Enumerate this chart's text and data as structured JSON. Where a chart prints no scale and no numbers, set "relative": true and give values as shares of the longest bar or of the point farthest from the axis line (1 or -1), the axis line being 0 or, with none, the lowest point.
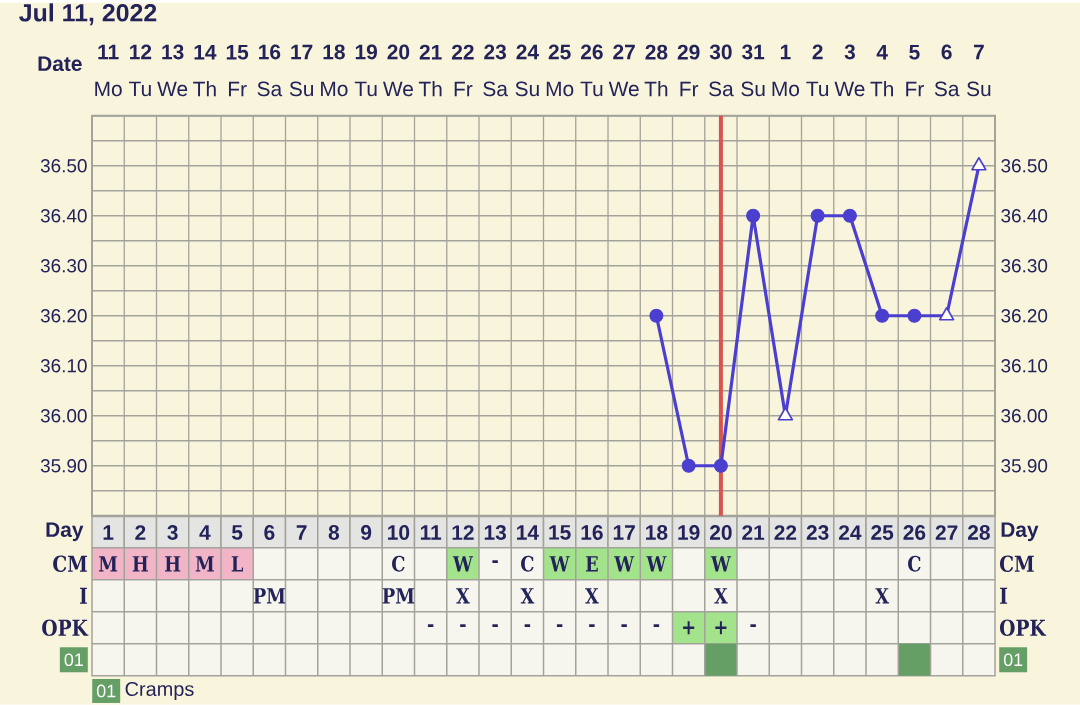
{
  "chart_data": [
    {
      "type": "line",
      "title": "Jul 11, 2022",
      "xlabel": "Day",
      "x2label": "Date",
      "xlim": [
        0.5,
        28.5
      ],
      "xticks": [
        {
          "value": 0.5,
          "label": null
        },
        1,
        {
          "value": 1.5,
          "label": null
        },
        2,
        {
          "value": 2.5,
          "label": null
        },
        3,
        {
          "value": 3.5,
          "label": null
        },
        4,
        {
          "value": 4.5,
          "label": null
        },
        5,
        {
          "value": 5.5,
          "label": null
        },
        6,
        {
          "value": 6.5,
          "label": null
        },
        7,
        {
          "value": 7.5,
          "label": null
        },
        8,
        {
          "value": 8.5,
          "label": null
        },
        9,
        {
          "value": 9.5,
          "label": null
        },
        10,
        {
          "value": 10.5,
          "label": null
        },
        11,
        {
          "value": 11.5,
          "label": null
        },
        12,
        {
          "value": 12.5,
          "label": null
        },
        13,
        {
          "value": 13.5,
          "label": null
        },
        14,
        {
          "value": 14.5,
          "label": null
        },
        15,
        {
          "value": 15.5,
          "label": null
        },
        16,
        {
          "value": 16.5,
          "label": null
        },
        17,
        {
          "value": 17.5,
          "label": null
        },
        18,
        {
          "value": 18.5,
          "label": null
        },
        19,
        {
          "value": 19.5,
          "label": null
        },
        20,
        {
          "value": 20.5,
          "label": null
        },
        21,
        {
          "value": 21.5,
          "label": null
        },
        22,
        {
          "value": 22.5,
          "label": null
        },
        23,
        {
          "value": 23.5,
          "label": null
        },
        24,
        {
          "value": 24.5,
          "label": null
        },
        25,
        {
          "value": 25.5,
          "label": null
        },
        26,
        {
          "value": 26.5,
          "label": null
        },
        27,
        {
          "value": 27.5,
          "label": null
        },
        28,
        {
          "value": 28.5,
          "label": null
        }
      ],
      "x2lim": [
        "2022-07-10T12:00",
        "2022-08-07T12:00"
      ],
      "x2ticks": [
        {
          "value": "2022-07-11",
          "label": "**11** Mo"
        },
        {
          "value": "2022-07-12",
          "label": "**12** Tu"
        },
        {
          "value": "2022-07-13",
          "label": "**13** We"
        },
        {
          "value": "2022-07-14",
          "label": "**14** Th"
        },
        {
          "value": "2022-07-15",
          "label": "**15** Fr"
        },
        {
          "value": "2022-07-16",
          "label": "**16** Sa"
        },
        {
          "value": "2022-07-17",
          "label": "**17** Su"
        },
        {
          "value": "2022-07-18",
          "label": "**18** Mo"
        },
        {
          "value": "2022-07-19",
          "label": "**19** Tu"
        },
        {
          "value": "2022-07-20",
          "label": "**20** We"
        },
        {
          "value": "2022-07-21",
          "label": "**21** Th"
        },
        {
          "value": "2022-07-22",
          "label": "**22** Fr"
        },
        {
          "value": "2022-07-23",
          "label": "**23** Sa"
        },
        {
          "value": "2022-07-24",
          "label": "**24** Su"
        },
        {
          "value": "2022-07-25",
          "label": "**25** Mo"
        },
        {
          "value": "2022-07-26",
          "label": "**26** Tu"
        },
        {
          "value": "2022-07-27",
          "label": "**27** We"
        },
        {
          "value": "2022-07-28",
          "label": "**28** Th"
        },
        {
          "value": "2022-07-29",
          "label": "**29** Fr"
        },
        {
          "value": "2022-07-30",
          "label": "**30** Sa"
        },
        {
          "value": "2022-07-31",
          "label": "**31** Su"
        },
        {
          "value": "2022-08-01",
          "label": "**1** Mo"
        },
        {
          "value": "2022-08-02",
          "label": "**2** Tu"
        },
        {
          "value": "2022-08-03",
          "label": "**3** We"
        },
        {
          "value": "2022-08-04",
          "label": "**4** Th"
        },
        {
          "value": "2022-08-05",
          "label": "**5** Fr"
        },
        {
          "value": "2022-08-06",
          "label": "**6** Sa"
        },
        {
          "value": "2022-08-07",
          "label": "**7** Su"
        }
      ],
      "ylim": [
        35.8,
        36.6
      ],
      "yticks": [
        {
          "value": 35.8,
          "label": null
        },
        {
          "value": 35.85,
          "label": null
        },
        {
          "value": 35.9,
          "label": "35.90"
        },
        {
          "value": 35.95,
          "label": null
        },
        {
          "value": 36.0,
          "label": "36.00"
        },
        {
          "value": 36.05,
          "label": null
        },
        {
          "value": 36.1,
          "label": "36.10"
        },
        {
          "value": 36.15,
          "label": null
        },
        {
          "value": 36.2,
          "label": "36.20"
        },
        {
          "value": 36.25,
          "label": null
        },
        {
          "value": 36.3,
          "label": "36.30"
        },
        {
          "value": 36.35,
          "label": null
        },
        {
          "value": 36.4,
          "label": "36.40"
        },
        {
          "value": 36.45,
          "label": null
        },
        {
          "value": 36.5,
          "label": "36.50"
        },
        {
          "value": 36.55,
          "label": null
        },
        {
          "value": 36.6,
          "label": null
        }
      ],
      "y2lim": [
        35.8,
        36.6
      ],
      "y2ticks": [
        {
          "value": 35.8,
          "label": null
        },
        {
          "value": 35.9,
          "label": "35.90"
        },
        {
          "value": 36.0,
          "label": "36.00"
        },
        {
          "value": 36.1,
          "label": "36.10"
        },
        {
          "value": 36.2,
          "label": "36.20"
        },
        {
          "value": 36.3,
          "label": "36.30"
        },
        {
          "value": 36.4,
          "label": "36.40"
        },
        {
          "value": 36.5,
          "label": "36.50"
        },
        {
          "value": 36.6,
          "label": null
        }
      ],
      "grid": true,
      "ref_lines": [
        {
          "axis": "x",
          "value": 20,
          "color": "#d9534f"
        }
      ],
      "series": [
        {
          "type": "line",
          "color": "#4b3fcf",
          "marker": "none",
          "x": [
            18,
            19,
            20,
            21,
            22,
            23,
            24,
            25,
            26,
            27,
            28
          ],
          "values": [
            36.2,
            35.9,
            35.9,
            36.4,
            36.0,
            36.4,
            36.4,
            36.2,
            36.2,
            36.2,
            36.5
          ]
        },
        {
          "type": "scatter",
          "color": "#4b3fcf",
          "marker": "circle",
          "x": [
            18,
            19,
            20,
            21,
            23,
            24,
            25,
            26
          ],
          "values": [
            36.2,
            35.9,
            35.9,
            36.4,
            36.4,
            36.4,
            36.2,
            36.2
          ]
        },
        {
          "type": "scatter",
          "color": "#4b3fcf",
          "marker": "triangle",
          "x": [
            22,
            27,
            28
          ],
          "values": [
            36.0,
            36.2,
            36.5
          ]
        }
      ]
    },
    {
      "type": "other",
      "y_categories": [
        "CM",
        "I",
        "OPK"
      ],
      "y2_categories": [
        "CM",
        "I",
        "OPK"
      ],
      "cell_labels": [
        [
          "M",
          "H",
          "H",
          "M",
          "L",
          null,
          null,
          null,
          null,
          "C",
          null,
          "W",
          "-",
          "C",
          "W",
          "E",
          "W",
          "W",
          null,
          "W",
          null,
          null,
          null,
          null,
          null,
          "C",
          null,
          null
        ],
        [
          null,
          null,
          null,
          null,
          null,
          "PM",
          null,
          null,
          null,
          "PM",
          null,
          "X",
          null,
          "X",
          null,
          "X",
          null,
          null,
          null,
          "X",
          null,
          null,
          null,
          null,
          "X",
          null,
          null,
          null
        ],
        [
          null,
          null,
          null,
          null,
          null,
          null,
          null,
          null,
          null,
          null,
          "-",
          "-",
          "-",
          "-",
          "-",
          "-",
          "-",
          "-",
          "+",
          "+",
          "-",
          null,
          null,
          null,
          null,
          null,
          null,
          null
        ]
      ],
      "colors": [
        [
          "#f2b5c8",
          "#f2b5c8",
          "#f2b5c8",
          "#f2b5c8",
          "#f2b5c8",
          null,
          null,
          null,
          null,
          null,
          null,
          "#a3e38c",
          null,
          null,
          "#a3e38c",
          "#a3e38c",
          "#a3e38c",
          "#a3e38c",
          null,
          "#a3e38c",
          null,
          null,
          null,
          null,
          null,
          null,
          null,
          null
        ],
        [
          null,
          null,
          null,
          null,
          null,
          null,
          null,
          null,
          null,
          null,
          null,
          null,
          null,
          null,
          null,
          null,
          null,
          null,
          null,
          null,
          null,
          null,
          null,
          null,
          null,
          null,
          null,
          null
        ],
        [
          null,
          null,
          null,
          null,
          null,
          null,
          null,
          null,
          null,
          null,
          null,
          null,
          null,
          null,
          null,
          null,
          null,
          null,
          "#a3e38c",
          "#a3e38c",
          null,
          null,
          null,
          null,
          null,
          null,
          null,
          null
        ]
      ]
    },
    {
      "type": "bar",
      "relative": true,
      "tick_labels": false,
      "ylabel": "01",
      "y2label": "01",
      "grid": "x",
      "categories": [
        "1",
        "2",
        "3",
        "4",
        "5",
        "6",
        "7",
        "8",
        "9",
        "10",
        "11",
        "12",
        "13",
        "14",
        "15",
        "16",
        "17",
        "18",
        "19",
        "20",
        "21",
        "22",
        "23",
        "24",
        "25",
        "26",
        "27",
        "28"
      ],
      "series": [
        {
          "name": "Cramps",
          "color": "#659f66",
          "values": [
            null,
            null,
            null,
            null,
            null,
            null,
            null,
            null,
            null,
            null,
            null,
            null,
            null,
            null,
            null,
            null,
            null,
            null,
            null,
            1,
            null,
            null,
            null,
            null,
            null,
            1,
            null,
            null
          ]
        }
      ],
      "legend": "bottom left",
      "annotations": [
        "01"
      ]
    }
  ]
}
